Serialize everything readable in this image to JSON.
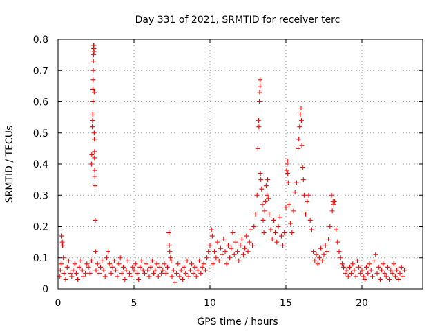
{
  "chart_data": {
    "type": "scatter",
    "title": "Day 331 of 2021, SRMTID for receiver terc",
    "xlabel": "GPS time / hours",
    "ylabel": "SRMTID / TECUs",
    "xlim": [
      0,
      24
    ],
    "ylim": [
      0,
      0.8
    ],
    "xticks": [
      0,
      5,
      10,
      15,
      20
    ],
    "xtick_labels": [
      "0",
      "5",
      "10",
      "15",
      "20"
    ],
    "yticks": [
      0,
      0.1,
      0.2,
      0.3,
      0.4,
      0.5,
      0.6,
      0.7,
      0.8
    ],
    "ytick_labels": [
      "0",
      "0.1",
      "0.2",
      "0.3",
      "0.4",
      "0.5",
      "0.6",
      "0.7",
      "0.8"
    ],
    "grid": true,
    "marker": "+",
    "series": [
      {
        "name": "SRMTID",
        "color": "#ff0000",
        "points": [
          [
            0.1,
            0.04
          ],
          [
            0.15,
            0.06
          ],
          [
            0.2,
            0.08
          ],
          [
            0.25,
            0.17
          ],
          [
            0.28,
            0.15
          ],
          [
            0.3,
            0.14
          ],
          [
            0.35,
            0.1
          ],
          [
            0.4,
            0.05
          ],
          [
            0.5,
            0.03
          ],
          [
            0.6,
            0.07
          ],
          [
            0.7,
            0.09
          ],
          [
            0.8,
            0.05
          ],
          [
            0.9,
            0.04
          ],
          [
            1.0,
            0.06
          ],
          [
            1.1,
            0.08
          ],
          [
            1.2,
            0.05
          ],
          [
            1.3,
            0.03
          ],
          [
            1.4,
            0.07
          ],
          [
            1.5,
            0.09
          ],
          [
            1.6,
            0.06
          ],
          [
            1.7,
            0.04
          ],
          [
            1.8,
            0.05
          ],
          [
            1.9,
            0.08
          ],
          [
            2.0,
            0.07
          ],
          [
            2.1,
            0.05
          ],
          [
            2.2,
            0.09
          ],
          [
            2.2,
            0.4
          ],
          [
            2.22,
            0.43
          ],
          [
            2.25,
            0.52
          ],
          [
            2.27,
            0.54
          ],
          [
            2.28,
            0.56
          ],
          [
            2.3,
            0.6
          ],
          [
            2.3,
            0.64
          ],
          [
            2.31,
            0.67
          ],
          [
            2.32,
            0.7
          ],
          [
            2.33,
            0.73
          ],
          [
            2.34,
            0.75
          ],
          [
            2.34,
            0.78
          ],
          [
            2.35,
            0.77
          ],
          [
            2.36,
            0.78
          ],
          [
            2.37,
            0.76
          ],
          [
            2.38,
            0.63
          ],
          [
            2.38,
            0.5
          ],
          [
            2.39,
            0.48
          ],
          [
            2.4,
            0.44
          ],
          [
            2.4,
            0.42
          ],
          [
            2.41,
            0.38
          ],
          [
            2.42,
            0.36
          ],
          [
            2.43,
            0.33
          ],
          [
            2.45,
            0.22
          ],
          [
            2.47,
            0.12
          ],
          [
            2.5,
            0.06
          ],
          [
            2.6,
            0.08
          ],
          [
            2.7,
            0.05
          ],
          [
            2.8,
            0.07
          ],
          [
            2.9,
            0.09
          ],
          [
            3.0,
            0.06
          ],
          [
            3.1,
            0.04
          ],
          [
            3.2,
            0.1
          ],
          [
            3.3,
            0.12
          ],
          [
            3.4,
            0.08
          ],
          [
            3.5,
            0.05
          ],
          [
            3.6,
            0.07
          ],
          [
            3.7,
            0.09
          ],
          [
            3.8,
            0.06
          ],
          [
            3.9,
            0.04
          ],
          [
            4.0,
            0.08
          ],
          [
            4.1,
            0.1
          ],
          [
            4.2,
            0.05
          ],
          [
            4.3,
            0.07
          ],
          [
            4.4,
            0.03
          ],
          [
            4.5,
            0.06
          ],
          [
            4.6,
            0.09
          ],
          [
            4.7,
            0.05
          ],
          [
            4.8,
            0.04
          ],
          [
            4.9,
            0.07
          ],
          [
            5.0,
            0.06
          ],
          [
            5.1,
            0.08
          ],
          [
            5.2,
            0.05
          ],
          [
            5.3,
            0.03
          ],
          [
            5.4,
            0.07
          ],
          [
            5.5,
            0.09
          ],
          [
            5.6,
            0.06
          ],
          [
            5.7,
            0.05
          ],
          [
            5.8,
            0.08
          ],
          [
            5.9,
            0.06
          ],
          [
            6.0,
            0.04
          ],
          [
            6.1,
            0.07
          ],
          [
            6.2,
            0.09
          ],
          [
            6.3,
            0.05
          ],
          [
            6.4,
            0.06
          ],
          [
            6.5,
            0.08
          ],
          [
            6.6,
            0.04
          ],
          [
            6.7,
            0.07
          ],
          [
            6.8,
            0.05
          ],
          [
            6.9,
            0.06
          ],
          [
            7.0,
            0.08
          ],
          [
            7.1,
            0.05
          ],
          [
            7.2,
            0.07
          ],
          [
            7.3,
            0.18
          ],
          [
            7.32,
            0.14
          ],
          [
            7.35,
            0.12
          ],
          [
            7.4,
            0.1
          ],
          [
            7.45,
            0.09
          ],
          [
            7.5,
            0.04
          ],
          [
            7.6,
            0.06
          ],
          [
            7.7,
            0.02
          ],
          [
            7.8,
            0.05
          ],
          [
            7.9,
            0.08
          ],
          [
            8.0,
            0.04
          ],
          [
            8.1,
            0.06
          ],
          [
            8.2,
            0.03
          ],
          [
            8.3,
            0.07
          ],
          [
            8.4,
            0.05
          ],
          [
            8.5,
            0.09
          ],
          [
            8.6,
            0.04
          ],
          [
            8.7,
            0.06
          ],
          [
            8.8,
            0.08
          ],
          [
            8.9,
            0.05
          ],
          [
            9.0,
            0.07
          ],
          [
            9.1,
            0.04
          ],
          [
            9.2,
            0.06
          ],
          [
            9.3,
            0.09
          ],
          [
            9.4,
            0.05
          ],
          [
            9.5,
            0.07
          ],
          [
            9.6,
            0.08
          ],
          [
            9.7,
            0.06
          ],
          [
            9.8,
            0.1
          ],
          [
            9.9,
            0.12
          ],
          [
            10.0,
            0.14
          ],
          [
            10.1,
            0.19
          ],
          [
            10.15,
            0.17
          ],
          [
            10.2,
            0.08
          ],
          [
            10.3,
            0.12
          ],
          [
            10.4,
            0.1
          ],
          [
            10.5,
            0.15
          ],
          [
            10.6,
            0.09
          ],
          [
            10.7,
            0.13
          ],
          [
            10.8,
            0.11
          ],
          [
            10.9,
            0.16
          ],
          [
            11.0,
            0.12
          ],
          [
            11.1,
            0.08
          ],
          [
            11.2,
            0.14
          ],
          [
            11.3,
            0.1
          ],
          [
            11.4,
            0.13
          ],
          [
            11.5,
            0.18
          ],
          [
            11.6,
            0.11
          ],
          [
            11.7,
            0.15
          ],
          [
            11.8,
            0.12
          ],
          [
            11.9,
            0.09
          ],
          [
            12.0,
            0.14
          ],
          [
            12.1,
            0.16
          ],
          [
            12.2,
            0.11
          ],
          [
            12.3,
            0.13
          ],
          [
            12.4,
            0.17
          ],
          [
            12.5,
            0.12
          ],
          [
            12.6,
            0.15
          ],
          [
            12.7,
            0.19
          ],
          [
            12.8,
            0.14
          ],
          [
            12.9,
            0.2
          ],
          [
            13.0,
            0.24
          ],
          [
            13.1,
            0.3
          ],
          [
            13.15,
            0.45
          ],
          [
            13.2,
            0.54
          ],
          [
            13.22,
            0.52
          ],
          [
            13.25,
            0.6
          ],
          [
            13.27,
            0.63
          ],
          [
            13.3,
            0.65
          ],
          [
            13.3,
            0.67
          ],
          [
            13.32,
            0.37
          ],
          [
            13.35,
            0.35
          ],
          [
            13.4,
            0.32
          ],
          [
            13.45,
            0.27
          ],
          [
            13.5,
            0.22
          ],
          [
            13.55,
            0.18
          ],
          [
            13.6,
            0.25
          ],
          [
            13.65,
            0.28
          ],
          [
            13.7,
            0.33
          ],
          [
            13.75,
            0.3
          ],
          [
            13.8,
            0.35
          ],
          [
            13.85,
            0.29
          ],
          [
            13.9,
            0.24
          ],
          [
            14.0,
            0.19
          ],
          [
            14.1,
            0.16
          ],
          [
            14.2,
            0.22
          ],
          [
            14.3,
            0.18
          ],
          [
            14.4,
            0.15
          ],
          [
            14.5,
            0.2
          ],
          [
            14.6,
            0.23
          ],
          [
            14.7,
            0.17
          ],
          [
            14.8,
            0.14
          ],
          [
            14.9,
            0.18
          ],
          [
            15.0,
            0.26
          ],
          [
            15.05,
            0.38
          ],
          [
            15.08,
            0.4
          ],
          [
            15.1,
            0.41
          ],
          [
            15.12,
            0.37
          ],
          [
            15.15,
            0.34
          ],
          [
            15.2,
            0.27
          ],
          [
            15.3,
            0.21
          ],
          [
            15.4,
            0.18
          ],
          [
            15.5,
            0.25
          ],
          [
            15.6,
            0.31
          ],
          [
            15.7,
            0.34
          ],
          [
            15.8,
            0.45
          ],
          [
            15.85,
            0.48
          ],
          [
            15.9,
            0.52
          ],
          [
            15.95,
            0.56
          ],
          [
            16.0,
            0.58
          ],
          [
            16.02,
            0.54
          ],
          [
            16.05,
            0.46
          ],
          [
            16.1,
            0.39
          ],
          [
            16.15,
            0.35
          ],
          [
            16.2,
            0.3
          ],
          [
            16.3,
            0.24
          ],
          [
            16.4,
            0.28
          ],
          [
            16.5,
            0.3
          ],
          [
            16.6,
            0.22
          ],
          [
            16.7,
            0.19
          ],
          [
            16.8,
            0.12
          ],
          [
            16.9,
            0.09
          ],
          [
            17.0,
            0.11
          ],
          [
            17.1,
            0.08
          ],
          [
            17.2,
            0.1
          ],
          [
            17.3,
            0.13
          ],
          [
            17.4,
            0.09
          ],
          [
            17.5,
            0.11
          ],
          [
            17.6,
            0.14
          ],
          [
            17.7,
            0.12
          ],
          [
            17.8,
            0.16
          ],
          [
            17.9,
            0.2
          ],
          [
            18.0,
            0.3
          ],
          [
            18.05,
            0.25
          ],
          [
            18.1,
            0.28
          ],
          [
            18.15,
            0.27
          ],
          [
            18.2,
            0.28
          ],
          [
            18.3,
            0.19
          ],
          [
            18.4,
            0.15
          ],
          [
            18.5,
            0.12
          ],
          [
            18.6,
            0.1
          ],
          [
            18.7,
            0.08
          ],
          [
            18.8,
            0.07
          ],
          [
            18.9,
            0.05
          ],
          [
            19.0,
            0.06
          ],
          [
            19.1,
            0.04
          ],
          [
            19.2,
            0.07
          ],
          [
            19.3,
            0.05
          ],
          [
            19.4,
            0.08
          ],
          [
            19.5,
            0.06
          ],
          [
            19.6,
            0.04
          ],
          [
            19.7,
            0.09
          ],
          [
            19.8,
            0.07
          ],
          [
            19.9,
            0.05
          ],
          [
            20.0,
            0.06
          ],
          [
            20.1,
            0.04
          ],
          [
            20.2,
            0.03
          ],
          [
            20.3,
            0.07
          ],
          [
            20.4,
            0.05
          ],
          [
            20.5,
            0.08
          ],
          [
            20.6,
            0.06
          ],
          [
            20.7,
            0.04
          ],
          [
            20.8,
            0.09
          ],
          [
            20.9,
            0.11
          ],
          [
            21.0,
            0.05
          ],
          [
            21.1,
            0.07
          ],
          [
            21.2,
            0.03
          ],
          [
            21.3,
            0.06
          ],
          [
            21.4,
            0.08
          ],
          [
            21.5,
            0.05
          ],
          [
            21.6,
            0.04
          ],
          [
            21.7,
            0.07
          ],
          [
            21.8,
            0.03
          ],
          [
            21.9,
            0.06
          ],
          [
            22.0,
            0.05
          ],
          [
            22.1,
            0.08
          ],
          [
            22.2,
            0.04
          ],
          [
            22.3,
            0.06
          ],
          [
            22.4,
            0.03
          ],
          [
            22.5,
            0.05
          ],
          [
            22.6,
            0.07
          ],
          [
            22.7,
            0.04
          ],
          [
            22.8,
            0.06
          ]
        ]
      }
    ]
  }
}
